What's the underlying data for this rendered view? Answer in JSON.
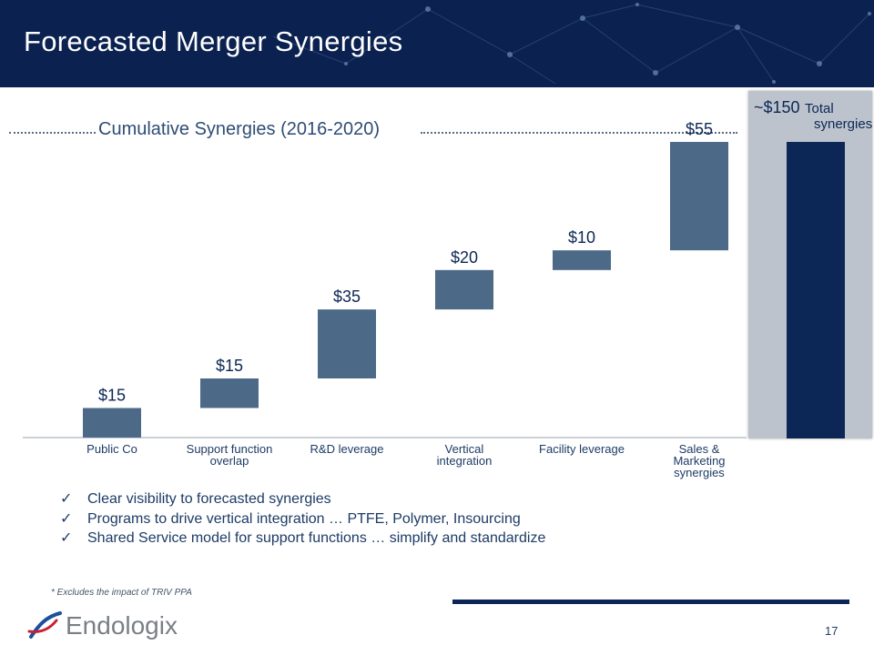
{
  "header": {
    "title": "Forecasted Merger Synergies"
  },
  "chart_data": {
    "type": "waterfall",
    "title": "Cumulative Synergies (2016-2020)",
    "units": "$",
    "categories": [
      "Public Co",
      "Support function overlap",
      "R&D leverage",
      "Vertical integration",
      "Facility leverage",
      "Sales & Marketing synergies"
    ],
    "category_lines": [
      [
        "Public Co"
      ],
      [
        "Support function",
        "overlap"
      ],
      [
        "R&D leverage"
      ],
      [
        "Vertical",
        "integration"
      ],
      [
        "Facility leverage"
      ],
      [
        "Sales &",
        "Marketing",
        "synergies"
      ]
    ],
    "values": [
      15,
      15,
      35,
      20,
      10,
      55
    ],
    "value_labels": [
      "$15",
      "$15",
      "$35",
      "$20",
      "$10",
      "$55"
    ],
    "total": {
      "value": 150,
      "value_label": "~$150",
      "label": "Total synergies",
      "label_lines": [
        "Total",
        "synergies"
      ]
    },
    "ylim": [
      0,
      150
    ],
    "bar_color": "#4c6a88",
    "total_color": "#0c2755"
  },
  "bullets": [
    "Clear visibility to forecasted synergies",
    "Programs to drive vertical integration … PTFE, Polymer, Insourcing",
    "Shared Service model for support functions … simplify and standardize"
  ],
  "check_icon": "✓",
  "footnote": "*   Excludes the impact of TRIV PPA",
  "logo": {
    "text": "Endologix",
    "icon": "endologix-swirl-icon"
  },
  "page_number": "17"
}
